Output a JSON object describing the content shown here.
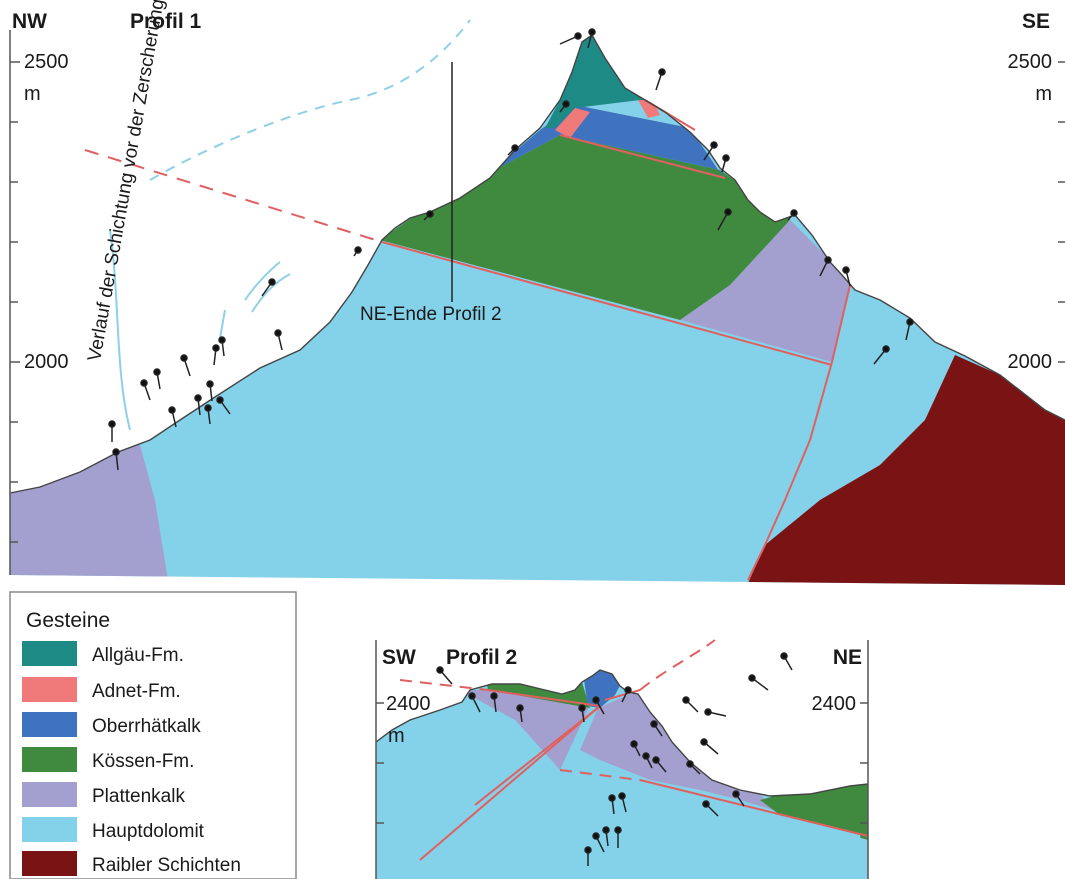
{
  "profile1": {
    "dir_left": "NW",
    "title": "Profil 1",
    "dir_right": "SE",
    "tick_2500_left": "2500",
    "unit_left": "m",
    "tick_2500_right": "2500",
    "unit_right": "m",
    "tick_2000_left": "2000",
    "tick_2000_right": "2000",
    "annotation_bedding": "Verlauf der Schichtung vor der Zerscherung",
    "annotation_profile2_end": "NE-Ende Profil 2"
  },
  "profile2": {
    "dir_left": "SW",
    "title": "Profil 2",
    "dir_right": "NE",
    "tick_2400_left": "2400",
    "unit_left": "m",
    "tick_2400_right": "2400"
  },
  "legend": {
    "title": "Gesteine",
    "items": [
      {
        "label": "Allgäu-Fm.",
        "color": "#1e8a86"
      },
      {
        "label": "Adnet-Fm.",
        "color": "#f07a7a"
      },
      {
        "label": "Oberrhätkalk",
        "color": "#3f73bf"
      },
      {
        "label": "Kössen-Fm.",
        "color": "#3f8a3f"
      },
      {
        "label": "Plattenkalk",
        "color": "#a3a0d0"
      },
      {
        "label": "Hauptdolomit",
        "color": "#84d1ea"
      },
      {
        "label": "Raibler Schichten",
        "color": "#7a1414"
      }
    ]
  },
  "colors": {
    "allgaeu": "#1e8a86",
    "adnet": "#f07a7a",
    "oberrhaet": "#3f73bf",
    "koessen": "#3f8a3f",
    "plattenkalk": "#a3a0d0",
    "hauptdolomit": "#84d1ea",
    "raibler": "#7a1414",
    "fault": "#e06060",
    "bedding": "#8fd0e8"
  }
}
